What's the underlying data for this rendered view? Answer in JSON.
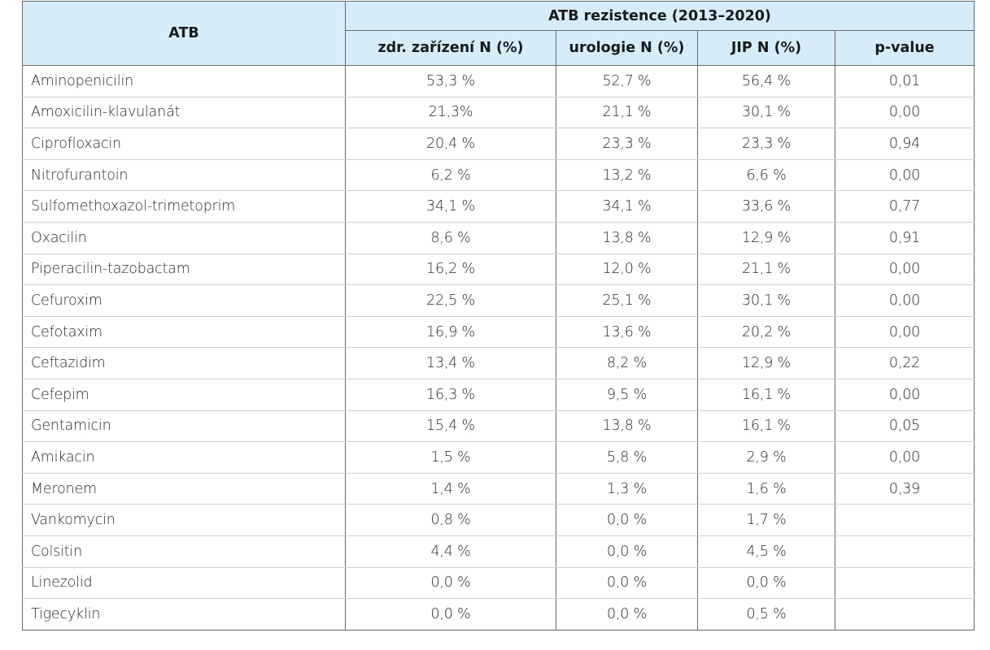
{
  "table": {
    "group_header": "ATB rezistence (2013–2020)",
    "columns": [
      "ATB",
      "zdr. zařízení N (%)",
      "urologie N (%)",
      "JIP N (%)",
      "p-value"
    ],
    "rows": [
      [
        "Aminopenicilin",
        "53,3 %",
        "52,7 %",
        "56,4 %",
        "0,01"
      ],
      [
        "Amoxicilin-klavulanát",
        "21,3%",
        "21,1 %",
        "30,1 %",
        "0,00"
      ],
      [
        "Ciprofloxacin",
        "20,4 %",
        "23,3 %",
        "23,3 %",
        "0,94"
      ],
      [
        "Nitrofurantoin",
        "6,2 %",
        "13,2 %",
        "6,6 %",
        "0,00"
      ],
      [
        "Sulfomethoxazol-trimetoprim",
        "34,1 %",
        "34,1 %",
        "33,6 %",
        "0,77"
      ],
      [
        "Oxacilin",
        "8,6 %",
        "13,8 %",
        "12,9 %",
        "0,91"
      ],
      [
        "Piperacilin-tazobactam",
        "16,2 %",
        "12,0 %",
        "21,1 %",
        "0,00"
      ],
      [
        "Cefuroxim",
        "22,5 %",
        "25,1 %",
        "30,1 %",
        "0,00"
      ],
      [
        "Cefotaxim",
        "16,9 %",
        "13,6 %",
        "20,2 %",
        "0,00"
      ],
      [
        "Ceftazidim",
        "13,4 %",
        "8,2 %",
        "12,9 %",
        "0,22"
      ],
      [
        "Cefepim",
        "16,3 %",
        "9,5 %",
        "16,1 %",
        "0,00"
      ],
      [
        "Gentamicin",
        "15,4 %",
        "13,8 %",
        "16,1 %",
        "0,05"
      ],
      [
        "Amikacin",
        "1,5 %",
        "5,8 %",
        "2,9 %",
        "0,00"
      ],
      [
        "Meronem",
        "1,4 %",
        "1,3 %",
        "1,6 %",
        "0,39"
      ],
      [
        "Vankomycin",
        "0,8 %",
        "0,0 %",
        "1,7 %",
        ""
      ],
      [
        "Colsitin",
        "4,4 %",
        "0,0 %",
        "4,5 %",
        ""
      ],
      [
        "Linezolid",
        "0,0 %",
        "0,0 %",
        "0,0 %",
        ""
      ],
      [
        "Tigecyklin",
        "0,0 %",
        "0,0 %",
        "0,5 %",
        ""
      ]
    ]
  }
}
